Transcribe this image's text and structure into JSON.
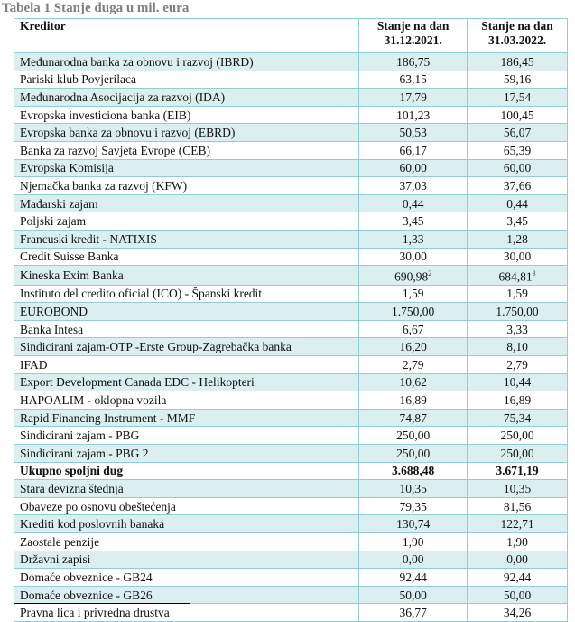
{
  "title": "Tabela 1 Stanje duga u mil. eura",
  "headers": {
    "kreditor": "Kreditor",
    "col1": "Stanje na dan 31.12.2021.",
    "col2": "Stanje na dan 31.03.2022."
  },
  "rows": [
    {
      "name": "Međunarodna banka za obnovu i razvoj (IBRD)",
      "v1": "186,75",
      "v2": "186,45"
    },
    {
      "name": "Pariski klub Povjerilaca",
      "v1": "63,15",
      "v2": "59,16"
    },
    {
      "name": "Međunarodna Asocijacija za razvoj (IDA)",
      "v1": "17,79",
      "v2": "17,54"
    },
    {
      "name": "Evropska investiciona banka (EIB)",
      "v1": "101,23",
      "v2": "100,45"
    },
    {
      "name": "Evropska banka za obnovu i razvoj (EBRD)",
      "v1": "50,53",
      "v2": "56,07"
    },
    {
      "name": "Banka za razvoj Savjeta Evrope (CEB)",
      "v1": "66,17",
      "v2": "65,39"
    },
    {
      "name": "Evropska Komisija",
      "v1": "60,00",
      "v2": "60,00"
    },
    {
      "name": "Njemačka banka za razvoj (KFW)",
      "v1": "37,03",
      "v2": "37,66"
    },
    {
      "name": "Mađarski zajam",
      "v1": "0,44",
      "v2": "0,44"
    },
    {
      "name": "Poljski zajam",
      "v1": "3,45",
      "v2": "3,45"
    },
    {
      "name": "Francuski kredit - NATIXIS",
      "v1": "1,33",
      "v2": "1,28"
    },
    {
      "name": "Credit Suisse Banka",
      "v1": "30,00",
      "v2": "30,00"
    },
    {
      "name": "Kineska Exim Banka",
      "v1": "690,98",
      "v1_sup": "2",
      "v2": "684,81",
      "v2_sup": "3"
    },
    {
      "name": "Instituto del credito oficial (ICO) - Španski kredit",
      "v1": "1,59",
      "v2": "1,59"
    },
    {
      "name": "EUROBOND",
      "v1": "1.750,00",
      "v2": "1.750,00"
    },
    {
      "name": "Banka Intesa",
      "v1": "6,67",
      "v2": "3,33"
    },
    {
      "name": "Sindicirani zajam-OTP -Erste Group-Zagrebačka banka",
      "v1": "16,20",
      "v2": "8,10"
    },
    {
      "name": "IFAD",
      "v1": "2,79",
      "v2": "2,79"
    },
    {
      "name": "Export Development Canada EDC - Helikopteri",
      "v1": "10,62",
      "v2": "10,44"
    },
    {
      "name": "HAPOALIM - oklopna vozila",
      "v1": "16,89",
      "v2": "16,89"
    },
    {
      "name": "Rapid Financing Instrument - MMF",
      "v1": "74,87",
      "v2": "75,34"
    },
    {
      "name": "Sindicirani zajam - PBG",
      "v1": "250,00",
      "v2": "250,00"
    },
    {
      "name": "Sindicirani zajam - PBG 2",
      "v1": "250,00",
      "v2": "250,00"
    },
    {
      "name": "Ukupno spoljni dug",
      "v1": "3.688,48",
      "v2": "3.671,19",
      "bold": true
    },
    {
      "name": "Stara devizna štednja",
      "v1": "10,35",
      "v2": "10,35"
    },
    {
      "name": "Obaveze po osnovu obeštećenja",
      "v1": "79,35",
      "v2": "81,56"
    },
    {
      "name": "Krediti kod poslovnih banaka",
      "v1": "130,74",
      "v2": "122,71"
    },
    {
      "name": "Zaostale penzije",
      "v1": "1,90",
      "v2": "1,90"
    },
    {
      "name": "Državni zapisi",
      "v1": "0,00",
      "v2": "0,00"
    },
    {
      "name": "Domaće obveznice - GB24",
      "v1": "92,44",
      "v2": "92,44"
    },
    {
      "name": "Domaće obveznice - GB26",
      "v1": "50,00",
      "v2": "50,00"
    },
    {
      "name": "Pravna lica i privredna drustva",
      "v1": "36,77",
      "v2": "34,26"
    }
  ]
}
